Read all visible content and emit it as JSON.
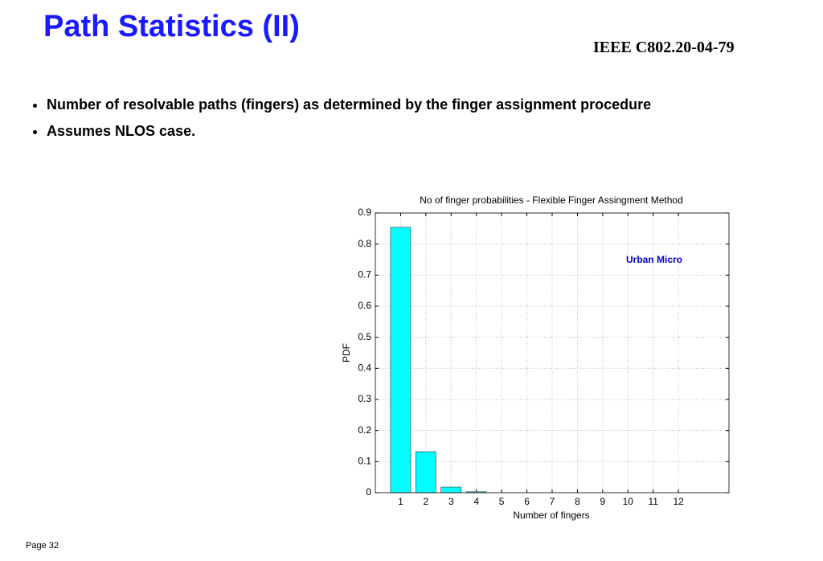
{
  "header": {
    "title": "Path Statistics (II)",
    "doc_id": "IEEE C802.20-04-79"
  },
  "bullets": [
    "Number of resolvable paths (fingers) as determined by the finger assignment procedure",
    "Assumes NLOS case."
  ],
  "footer": {
    "page": "Page 32"
  },
  "chart_data": {
    "type": "bar",
    "title": "No of finger probabilities - Flexible Finger Assingment Method",
    "x_label": "Number of fingers",
    "y_label": "PDF",
    "annotation": "Urban Micro",
    "annotation_color": "#0000cc",
    "x": [
      1,
      2,
      3,
      4,
      5,
      6,
      7,
      8,
      9,
      10,
      11,
      12
    ],
    "values": [
      0.854,
      0.132,
      0.018,
      0.003,
      0,
      0,
      0,
      0,
      0,
      0,
      0,
      0
    ],
    "color": "#00ffff",
    "xlim": [
      0,
      14
    ],
    "xticks": [
      1,
      2,
      3,
      4,
      5,
      6,
      7,
      8,
      9,
      10,
      11,
      12
    ],
    "ylim": [
      0,
      0.9
    ],
    "yticks": [
      0,
      0.1,
      0.2,
      0.3,
      0.4,
      0.5,
      0.6,
      0.7,
      0.8,
      0.9
    ],
    "grid": true
  }
}
